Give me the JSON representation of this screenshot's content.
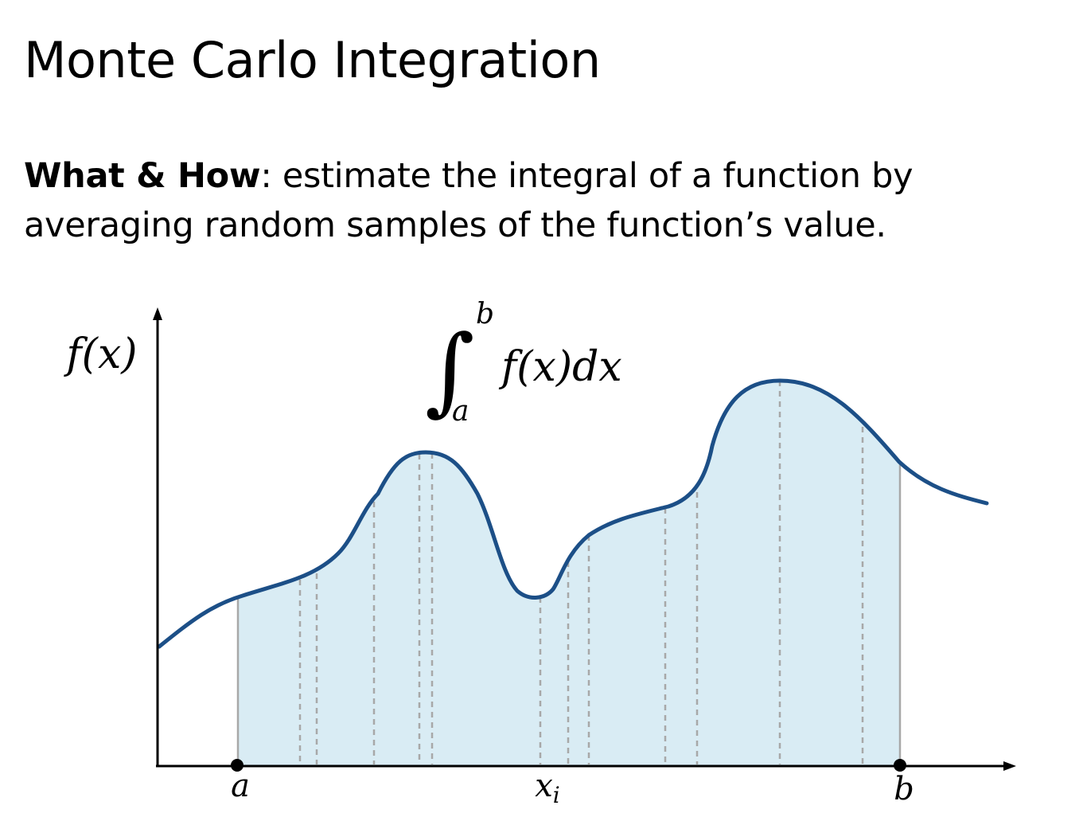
{
  "slide": {
    "title": "Monte Carlo Integration",
    "body": {
      "lead": "What & How",
      "separator": ":",
      "text": " estimate the integral of a function by averaging random samples of the function’s value."
    }
  },
  "diagram": {
    "y_axis_label": "f(x)",
    "integral": {
      "symbol": "∫",
      "upper_limit": "b",
      "lower_limit": "a",
      "integrand": "f(x)dx"
    },
    "x_labels": {
      "lower_bound": "a",
      "sample_base": "x",
      "sample_subscript": "i",
      "upper_bound": "b"
    },
    "colors": {
      "curve": "#1c4f87",
      "area_fill": "#d9ecf4",
      "sample_line": "#a8a8a8",
      "bound_line": "#a8a8a8",
      "axis": "#000000"
    }
  }
}
